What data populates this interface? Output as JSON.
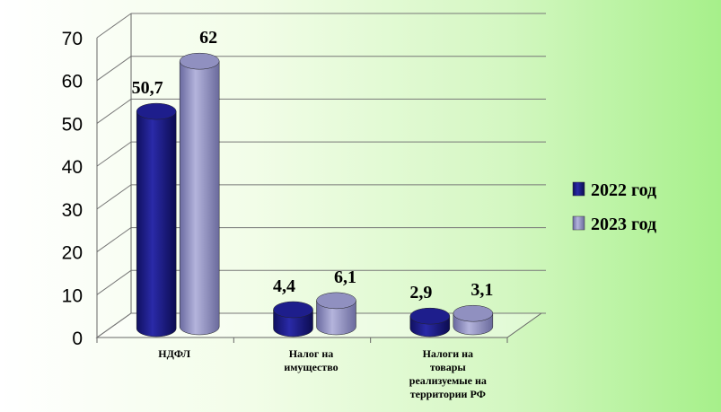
{
  "chart_data": {
    "type": "bar",
    "title": "",
    "xlabel": "",
    "ylabel": "",
    "ylim": [
      0,
      70
    ],
    "yticks": [
      "0",
      "10",
      "20",
      "30",
      "40",
      "50",
      "60",
      "70"
    ],
    "categories": [
      [
        "НДФЛ"
      ],
      [
        "Налог на",
        "имущество"
      ],
      [
        "Налоги на",
        "товары",
        "реализуемые на",
        "территории РФ"
      ]
    ],
    "series": [
      {
        "name": "2022 год",
        "color": "#1e1e8c",
        "values": [
          50.7,
          4.4,
          2.9
        ],
        "labels": [
          "50,7",
          "4,4",
          "2,9"
        ]
      },
      {
        "name": "2023 год",
        "color": "#9090c0",
        "values": [
          62,
          6.1,
          3.1
        ],
        "labels": [
          "62",
          "6,1",
          "3,1"
        ]
      }
    ],
    "grid": true,
    "legend_position": "right"
  }
}
